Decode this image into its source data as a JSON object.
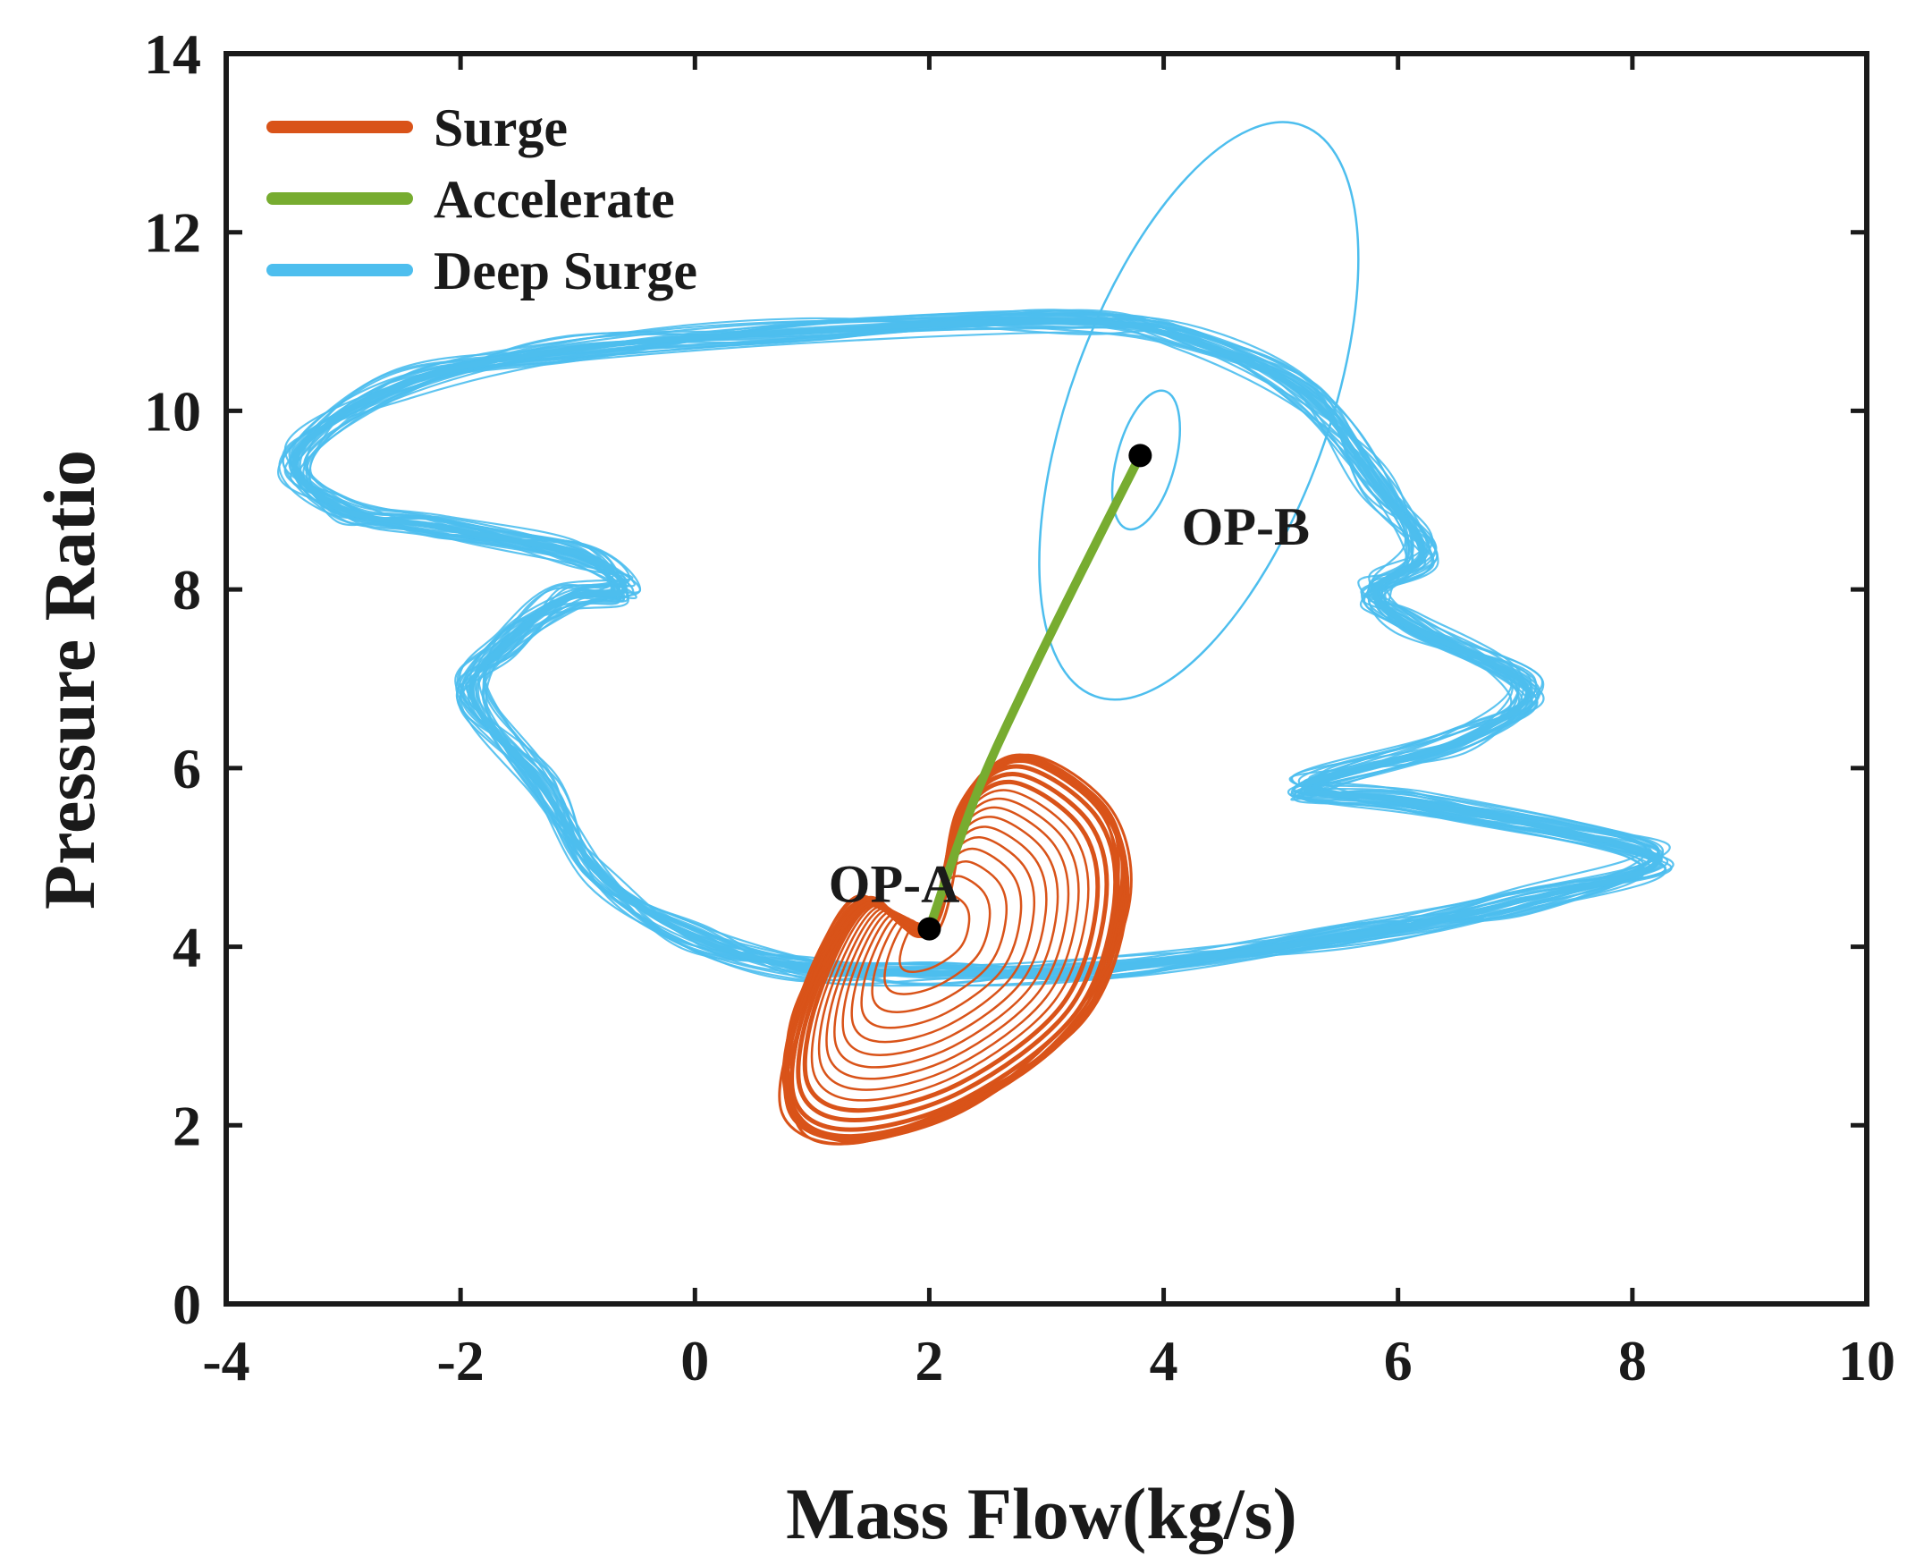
{
  "chart_data": {
    "type": "line",
    "title": "",
    "xlabel": "Mass Flow(kg/s)",
    "ylabel": "Pressure Ratio",
    "xlim": [
      -4,
      10
    ],
    "ylim": [
      0,
      14
    ],
    "xticks": [
      -4,
      -2,
      0,
      2,
      4,
      6,
      8,
      10
    ],
    "yticks": [
      0,
      2,
      4,
      6,
      8,
      10,
      12,
      14
    ],
    "xtick_labels": [
      "-4",
      "-2",
      "0",
      "2",
      "4",
      "6",
      "8",
      "10"
    ],
    "ytick_labels": [
      "0",
      "2",
      "4",
      "6",
      "8",
      "10",
      "12",
      "14"
    ],
    "grid": false,
    "legend_position": "top-left",
    "series": [
      {
        "name": "Surge",
        "color": "#d95319",
        "points": [
          [
            2.0,
            4.2
          ],
          [
            2.3,
            5.6
          ],
          [
            2.8,
            6.1
          ],
          [
            3.5,
            5.5
          ],
          [
            3.65,
            4.5
          ],
          [
            3.3,
            3.2
          ],
          [
            2.3,
            2.2
          ],
          [
            1.3,
            1.85
          ],
          [
            0.8,
            2.2
          ],
          [
            0.9,
            3.3
          ],
          [
            1.4,
            4.5
          ],
          [
            2.0,
            4.2
          ]
        ]
      },
      {
        "name": "Accelerate",
        "color": "#77ac30",
        "points": [
          [
            2.0,
            4.2
          ],
          [
            2.4,
            5.7
          ],
          [
            2.85,
            7.0
          ],
          [
            3.3,
            8.2
          ],
          [
            3.8,
            9.5
          ]
        ]
      },
      {
        "name": "Deep Surge",
        "color": "#4dbeee",
        "points": [
          [
            -3.4,
            9.5
          ],
          [
            -2.5,
            10.3
          ],
          [
            -1.0,
            10.7
          ],
          [
            1.0,
            10.9
          ],
          [
            3.2,
            11.0
          ],
          [
            4.2,
            10.8
          ],
          [
            5.2,
            10.2
          ],
          [
            5.8,
            9.2
          ],
          [
            6.2,
            8.4
          ],
          [
            5.8,
            8.0
          ],
          [
            6.1,
            7.6
          ],
          [
            7.1,
            6.9
          ],
          [
            6.5,
            6.3
          ],
          [
            5.2,
            5.8
          ],
          [
            6.2,
            5.6
          ],
          [
            8.2,
            5.0
          ],
          [
            7.0,
            4.5
          ],
          [
            5.5,
            4.1
          ],
          [
            3.5,
            3.75
          ],
          [
            2.0,
            3.7
          ],
          [
            1.0,
            3.75
          ],
          [
            0.0,
            4.1
          ],
          [
            -0.8,
            4.8
          ],
          [
            -1.3,
            5.8
          ],
          [
            -1.9,
            6.8
          ],
          [
            -1.6,
            7.4
          ],
          [
            -1.1,
            7.9
          ],
          [
            -0.6,
            8.0
          ],
          [
            -1.0,
            8.4
          ],
          [
            -2.2,
            8.7
          ],
          [
            -3.0,
            8.9
          ],
          [
            -3.4,
            9.5
          ]
        ]
      }
    ],
    "extra_curves": {
      "deep_surge_large_loop_center": [
        4.3,
        10.0
      ],
      "deep_surge_large_loop_radii": [
        1.1,
        3.4
      ],
      "deep_surge_large_loop_tilt_deg": 20,
      "deep_surge_inner_ring_center": [
        3.85,
        9.45
      ],
      "deep_surge_inner_ring_radii": [
        0.25,
        0.8
      ],
      "surge_cycles": 14
    },
    "operating_points": [
      {
        "label": "OP-A",
        "x": 2.0,
        "y": 4.2
      },
      {
        "label": "OP-B",
        "x": 3.8,
        "y": 9.5
      }
    ],
    "annotations": [
      {
        "text": "OP-A",
        "x": 1.7,
        "y": 4.5
      },
      {
        "text": "OP-B",
        "x": 4.7,
        "y": 8.5
      }
    ]
  }
}
